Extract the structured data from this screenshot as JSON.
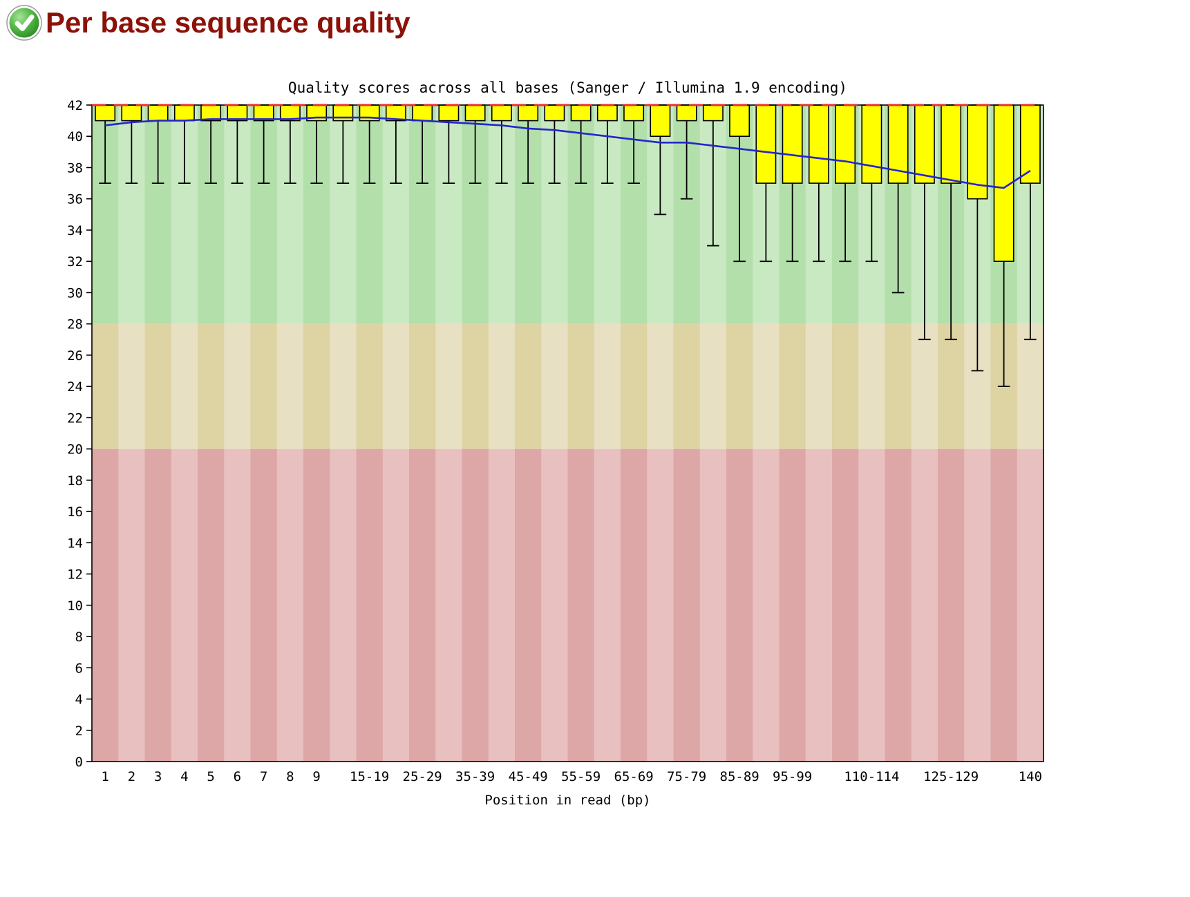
{
  "page": {
    "title": "Per base sequence quality",
    "status": "pass",
    "title_color": "#8c1208"
  },
  "chart_data": {
    "type": "boxplot",
    "title": "Quality scores across all bases (Sanger / Illumina 1.9 encoding)",
    "xlabel": "Position in read (bp)",
    "ylabel": "",
    "ylim": [
      0,
      42
    ],
    "y_ticks": [
      0,
      2,
      4,
      6,
      8,
      10,
      12,
      14,
      16,
      18,
      20,
      22,
      24,
      26,
      28,
      30,
      32,
      34,
      36,
      38,
      40,
      42
    ],
    "grid": false,
    "legend": "none",
    "bands": [
      {
        "name": "poor-quality-band",
        "from": 0,
        "to": 20,
        "color": "#dda7a7",
        "alt_color": "#e8c0c0"
      },
      {
        "name": "medium-quality-band",
        "from": 20,
        "to": 28,
        "color": "#ddd3a3",
        "alt_color": "#e8e0c3"
      },
      {
        "name": "good-quality-band",
        "from": 28,
        "to": 42,
        "color": "#b3dfab",
        "alt_color": "#c9e9c2"
      }
    ],
    "max_quality_line": {
      "y": 42,
      "color": "#e83030",
      "style": "dashed"
    },
    "box_color": "#ffff00",
    "box_stroke": "#000000",
    "mean_line_color": "#2525cc",
    "bin_fields": [
      "label",
      "show_label",
      "whisker_low",
      "q1",
      "q3",
      "whisker_high",
      "mean"
    ],
    "bins": [
      [
        "1",
        true,
        37,
        41,
        42,
        42,
        40.7
      ],
      [
        "2",
        true,
        37,
        41,
        42,
        42,
        40.9
      ],
      [
        "3",
        true,
        37,
        41,
        42,
        42,
        41.0
      ],
      [
        "4",
        true,
        37,
        41,
        42,
        42,
        41.0
      ],
      [
        "5",
        true,
        37,
        41,
        42,
        42,
        41.1
      ],
      [
        "6",
        true,
        37,
        41,
        42,
        42,
        41.1
      ],
      [
        "7",
        true,
        37,
        41,
        42,
        42,
        41.1
      ],
      [
        "8",
        true,
        37,
        41,
        42,
        42,
        41.1
      ],
      [
        "9",
        true,
        37,
        41,
        42,
        42,
        41.2
      ],
      [
        "10-14",
        false,
        37,
        41,
        42,
        42,
        41.2
      ],
      [
        "15-19",
        true,
        37,
        41,
        42,
        42,
        41.2
      ],
      [
        "20-24",
        false,
        37,
        41,
        42,
        42,
        41.1
      ],
      [
        "25-29",
        true,
        37,
        41,
        42,
        42,
        41.0
      ],
      [
        "30-34",
        false,
        37,
        41,
        42,
        42,
        40.9
      ],
      [
        "35-39",
        true,
        37,
        41,
        42,
        42,
        40.8
      ],
      [
        "40-44",
        false,
        37,
        41,
        42,
        42,
        40.7
      ],
      [
        "45-49",
        true,
        37,
        41,
        42,
        42,
        40.5
      ],
      [
        "50-54",
        false,
        37,
        41,
        42,
        42,
        40.4
      ],
      [
        "55-59",
        true,
        37,
        41,
        42,
        42,
        40.2
      ],
      [
        "60-64",
        false,
        37,
        41,
        42,
        42,
        40.0
      ],
      [
        "65-69",
        true,
        37,
        41,
        42,
        42,
        39.8
      ],
      [
        "70-74",
        false,
        35,
        40,
        42,
        42,
        39.6
      ],
      [
        "75-79",
        true,
        36,
        41,
        42,
        42,
        39.6
      ],
      [
        "80-84",
        false,
        33,
        41,
        42,
        42,
        39.4
      ],
      [
        "85-89",
        true,
        32,
        40,
        42,
        42,
        39.2
      ],
      [
        "90-94",
        false,
        32,
        37,
        42,
        42,
        39.0
      ],
      [
        "95-99",
        true,
        32,
        37,
        42,
        42,
        38.8
      ],
      [
        "100-104",
        false,
        32,
        37,
        42,
        42,
        38.6
      ],
      [
        "105-109",
        false,
        32,
        37,
        42,
        42,
        38.4
      ],
      [
        "110-114",
        true,
        32,
        37,
        42,
        42,
        38.1
      ],
      [
        "115-119",
        false,
        30,
        37,
        42,
        42,
        37.8
      ],
      [
        "120-124",
        false,
        27,
        37,
        42,
        42,
        37.5
      ],
      [
        "125-129",
        true,
        27,
        37,
        42,
        42,
        37.2
      ],
      [
        "130-134",
        false,
        25,
        36,
        42,
        42,
        36.9
      ],
      [
        "135-139",
        false,
        24,
        32,
        42,
        42,
        36.7
      ],
      [
        "140",
        true,
        27,
        37,
        42,
        42,
        37.8
      ]
    ]
  }
}
